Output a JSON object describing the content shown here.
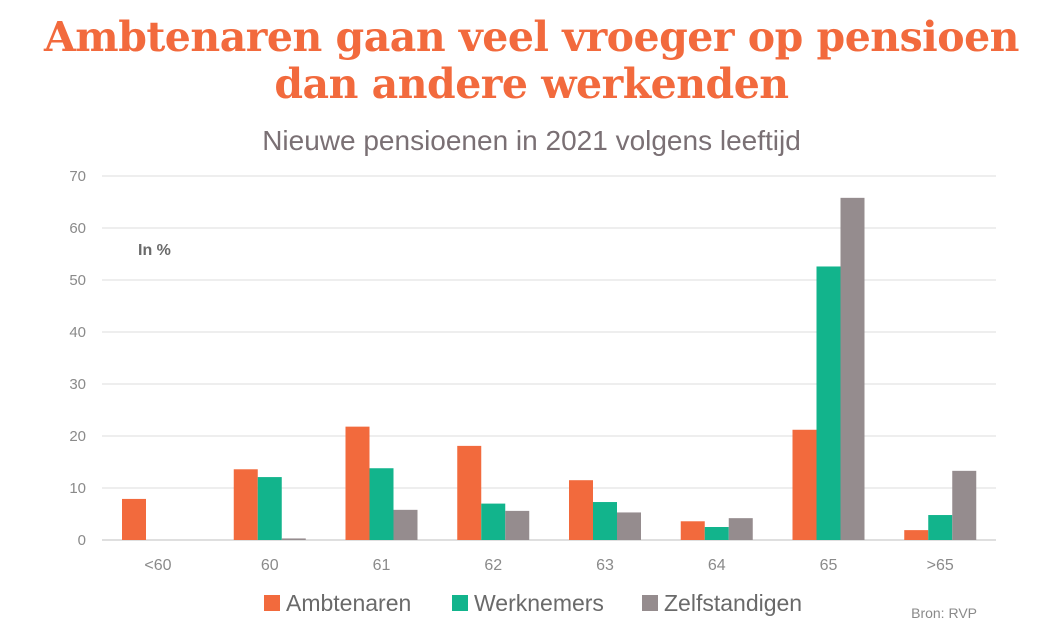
{
  "headline": "Ambtenaren gaan veel vroeger op pensioen dan andere werkenden",
  "source": "Bron: RVP",
  "chart_data": {
    "type": "bar",
    "title": "Nieuwe pensioenen in 2021 volgens leeftijd",
    "unit_label": "In %",
    "categories": [
      "<60",
      "60",
      "61",
      "62",
      "63",
      "64",
      "65",
      ">65"
    ],
    "ylim": [
      0,
      70
    ],
    "yticks": [
      0,
      10,
      20,
      30,
      40,
      50,
      60,
      70
    ],
    "grid": true,
    "legend": "bottom",
    "series": [
      {
        "name": "Ambtenaren",
        "color": "#f26a3d",
        "values": [
          7.9,
          13.6,
          21.8,
          18.1,
          11.5,
          3.6,
          21.2,
          1.9
        ]
      },
      {
        "name": "Werknemers",
        "color": "#12b48c",
        "values": [
          0,
          12.1,
          13.8,
          7.0,
          7.3,
          2.5,
          52.6,
          4.8
        ]
      },
      {
        "name": "Zelfstandigen",
        "color": "#958c8e",
        "values": [
          0,
          0.3,
          5.8,
          5.6,
          5.3,
          4.2,
          65.8,
          13.3
        ]
      }
    ]
  }
}
